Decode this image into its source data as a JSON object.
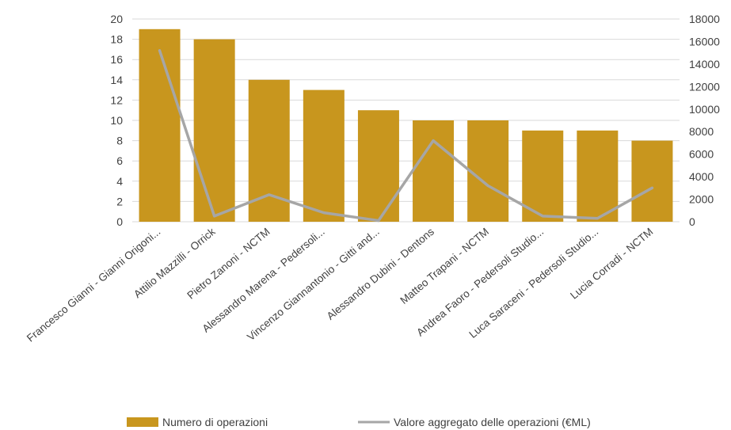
{
  "chart_data": {
    "type": "bar",
    "categories": [
      "Francesco Gianni - Gianni Origoni...",
      "Attilio Mazzilli - Orrick",
      "Pietro Zanoni - NCTM",
      "Alessandro Marena - Pedersoli...",
      "Vincenzo Giannantonio - Gitti and...",
      "Alessandro Dubini - Dentons",
      "Matteo Trapani - NCTM",
      "Andrea Faoro - Pedersoli Studio...",
      "Luca Saraceni - Pedersoli Studio...",
      "Lucia Corradi - NCTM"
    ],
    "series": [
      {
        "name": "Numero di operazioni",
        "type": "bar",
        "axis": "left",
        "color": "#C8961E",
        "values": [
          19,
          18,
          14,
          13,
          11,
          10,
          10,
          9,
          9,
          8
        ]
      },
      {
        "name": "Valore aggregato delle operazioni (€ML)",
        "type": "line",
        "axis": "right",
        "color": "#A6A6A6",
        "values": [
          15200,
          500,
          2400,
          800,
          100,
          7200,
          3200,
          500,
          300,
          3000
        ]
      }
    ],
    "ylim_left": [
      0,
      20
    ],
    "yticks_left": [
      0,
      2,
      4,
      6,
      8,
      10,
      12,
      14,
      16,
      18,
      20
    ],
    "ylim_right": [
      0,
      18000
    ],
    "yticks_right": [
      0,
      2000,
      4000,
      6000,
      8000,
      10000,
      12000,
      14000,
      16000,
      18000
    ],
    "grid": true,
    "legend_position": "bottom",
    "title": "",
    "xlabel": "",
    "ylabel": ""
  }
}
